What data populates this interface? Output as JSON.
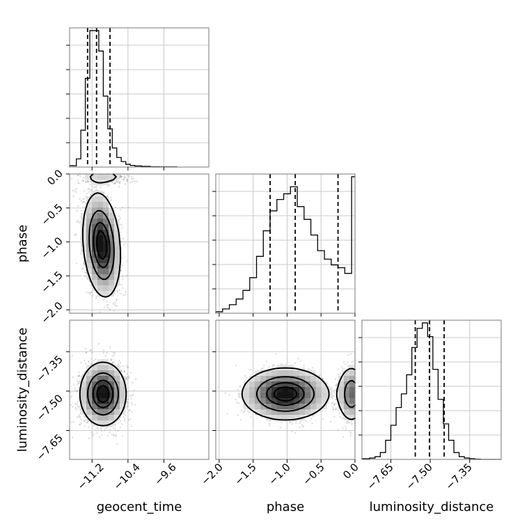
{
  "chart_data": {
    "type": "corner",
    "parameters": [
      {
        "name": "geocent_time",
        "range": [
          -11.7,
          -8.6
        ],
        "ticks": [
          -11.2,
          -10.4,
          -9.6
        ],
        "quantiles": [
          -11.3,
          -11.1,
          -10.8
        ]
      },
      {
        "name": "phase",
        "range": [
          -2.05,
          0.0
        ],
        "ticks": [
          -2.0,
          -1.5,
          -1.0,
          -0.5,
          0.0
        ],
        "quantiles": [
          -1.25,
          -0.88,
          -0.25
        ]
      },
      {
        "name": "luminosity_distance",
        "range": [
          -7.76,
          -7.23
        ],
        "ticks": [
          -7.65,
          -7.5,
          -7.35
        ],
        "quantiles": [
          -7.557,
          -7.503,
          -7.447
        ]
      }
    ],
    "tick_labels": {
      "geocent_time": [
        "−11.2",
        "−10.4",
        "−9.6"
      ],
      "phase": [
        "−2.0",
        "−1.5",
        "−1.0",
        "−0.5",
        "0.0"
      ],
      "luminosity_distance": [
        "−7.65",
        "−7.50",
        "−7.35"
      ]
    },
    "histograms": {
      "geocent_time": {
        "edges": [
          -11.7,
          -11.55,
          -11.45,
          -11.35,
          -11.25,
          -11.15,
          -11.05,
          -10.95,
          -10.85,
          -10.75,
          -10.65,
          -10.55,
          -10.45,
          -10.35,
          -10.25,
          -10.1,
          -9.9,
          -9.7,
          -9.3
        ],
        "counts": [
          1,
          6,
          27,
          65,
          100,
          100,
          85,
          52,
          28,
          14,
          7,
          4,
          2,
          1.2,
          0.8,
          0.5,
          0.2,
          0.1
        ]
      },
      "phase": {
        "edges": [
          -2.05,
          -1.95,
          -1.85,
          -1.75,
          -1.65,
          -1.55,
          -1.45,
          -1.35,
          -1.25,
          -1.15,
          -1.05,
          -0.95,
          -0.85,
          -0.75,
          -0.65,
          -0.55,
          -0.45,
          -0.35,
          -0.25,
          -0.15,
          -0.05,
          0.0
        ],
        "counts": [
          1,
          3,
          6,
          10,
          16,
          25,
          40,
          58,
          72,
          80,
          84,
          89,
          75,
          66,
          55,
          44,
          38,
          34,
          32,
          28,
          96
        ]
      },
      "luminosity_distance": {
        "edges": [
          -7.76,
          -7.73,
          -7.71,
          -7.69,
          -7.67,
          -7.65,
          -7.63,
          -7.61,
          -7.59,
          -7.57,
          -7.55,
          -7.53,
          -7.51,
          -7.49,
          -7.47,
          -7.45,
          -7.43,
          -7.41,
          -7.39,
          -7.37,
          -7.35,
          -7.33,
          -7.31,
          -7.23
        ],
        "counts": [
          0.5,
          1,
          2,
          5,
          14,
          25,
          38,
          48,
          62,
          82,
          96,
          100,
          90,
          66,
          44,
          26,
          14,
          5,
          2,
          1,
          0.5,
          0.2,
          0
        ]
      }
    },
    "joint_2d": [
      {
        "x": "geocent_time",
        "y": "phase",
        "mode": "shared"
      },
      {
        "x": "geocent_time",
        "y": "luminosity_distance",
        "mode": "independent"
      },
      {
        "x": "phase",
        "y": "luminosity_distance",
        "mode": "independent"
      }
    ],
    "contour_levels": [
      0.118,
      0.393,
      0.675,
      0.865
    ],
    "grid": true
  }
}
